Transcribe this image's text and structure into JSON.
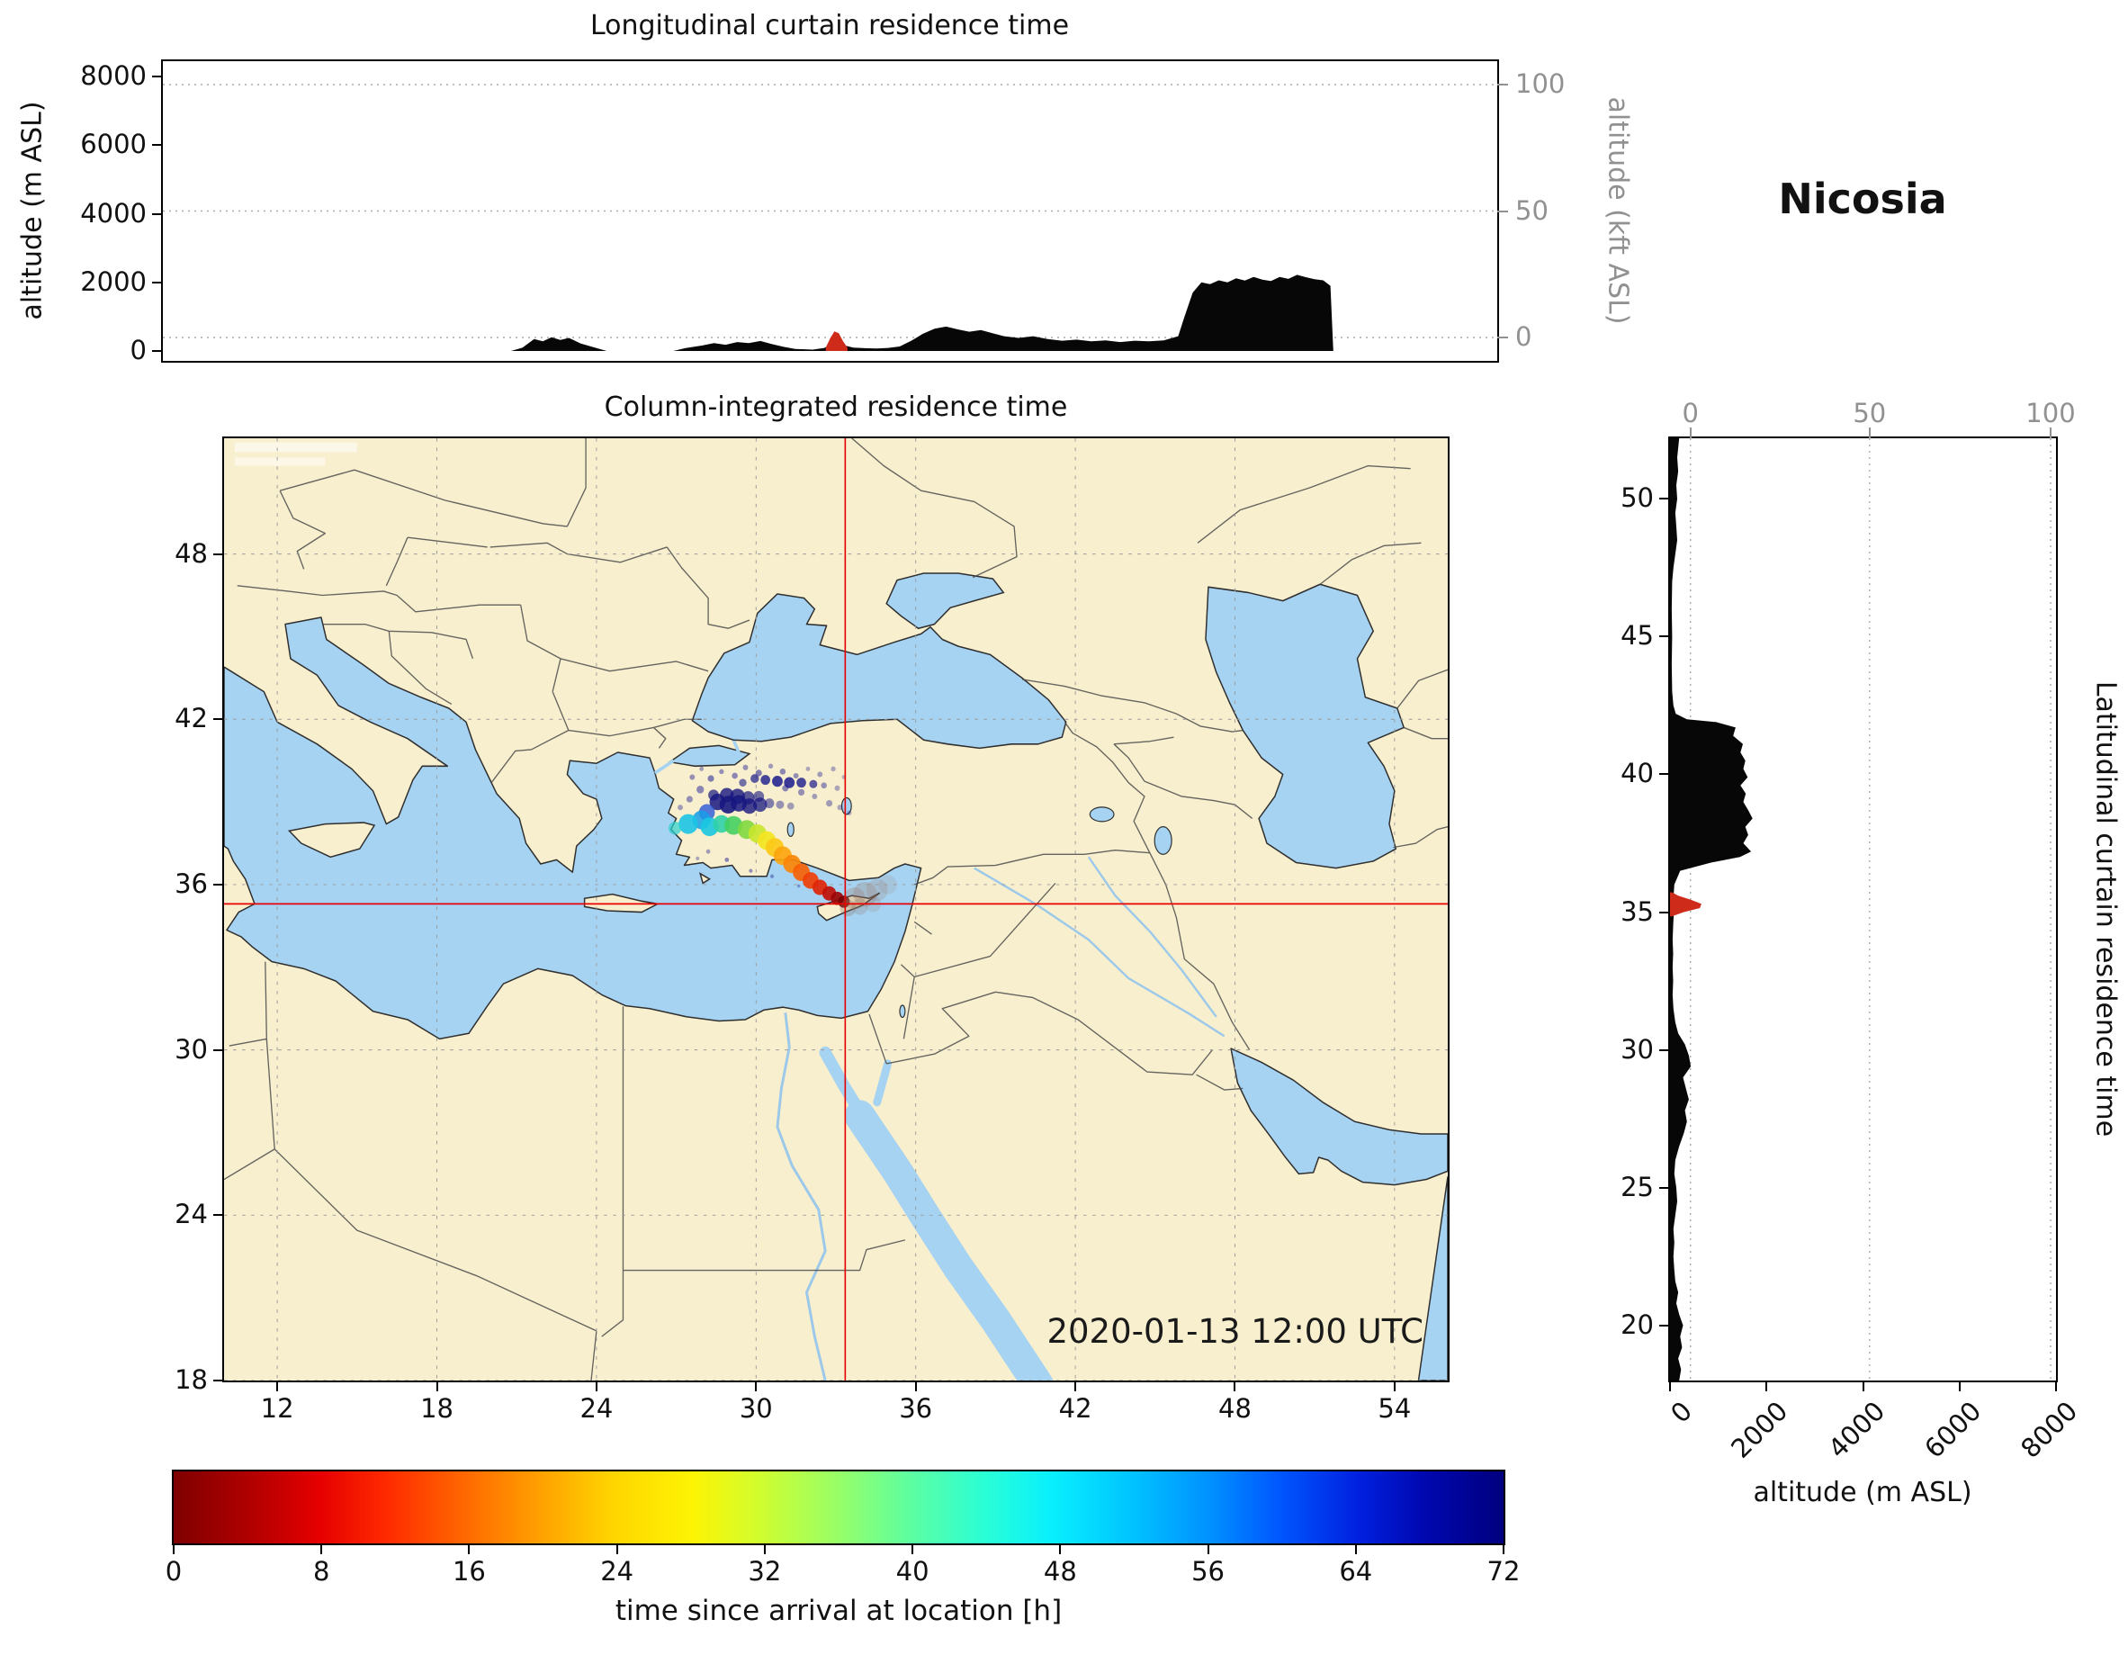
{
  "figure": {
    "station": "Nicosia",
    "datetime": "2020-01-13 12:00 UTC"
  },
  "top_panel": {
    "title": "Longitudinal curtain residence time",
    "ylabel_left": "altitude (m ASL)",
    "ylabel_right": "altitude (kft ASL)",
    "yticks_left": [
      "0",
      "2000",
      "4000",
      "6000",
      "8000"
    ],
    "yticks_right": [
      "0",
      "50",
      "100"
    ]
  },
  "map_panel": {
    "title": "Column-integrated residence time",
    "xticks": [
      "12",
      "18",
      "24",
      "30",
      "36",
      "42",
      "48",
      "54"
    ],
    "yticks": [
      "18",
      "24",
      "30",
      "36",
      "42",
      "48"
    ]
  },
  "right_panel": {
    "label_right": "Latitudinal curtain residence time",
    "xlabel": "altitude (m ASL)",
    "xticks": [
      "0",
      "2000",
      "4000",
      "6000",
      "8000"
    ],
    "top_ticks": [
      "0",
      "50",
      "100"
    ],
    "yticks": [
      "20",
      "25",
      "30",
      "35",
      "40",
      "45",
      "50"
    ]
  },
  "colorbar": {
    "label": "time since arrival at location [h]",
    "ticks": [
      "0",
      "8",
      "16",
      "24",
      "32",
      "40",
      "48",
      "56",
      "64",
      "72"
    ]
  },
  "chart_data": {
    "type": "geo-trajectory-composite",
    "lon_domain": [
      10,
      56
    ],
    "lat_domain": [
      18,
      52.2
    ],
    "alt_domain": [
      0,
      8000
    ],
    "crosshair": {
      "lon": 33.35,
      "lat": 35.3
    },
    "map_grid": {
      "lons": [
        12,
        18,
        24,
        30,
        36,
        42,
        48,
        54
      ],
      "lats": [
        18,
        24,
        30,
        36,
        42,
        48
      ]
    },
    "kft_levels": [
      [
        "0",
        0.922
      ],
      [
        "50",
        0.5
      ],
      [
        "100",
        0.078
      ]
    ],
    "right_top_fracs": [
      [
        "0",
        0.053
      ],
      [
        "50",
        0.517
      ],
      [
        "100",
        0.986
      ]
    ],
    "top_terrain": [
      [
        10,
        0
      ],
      [
        22,
        0
      ],
      [
        22.4,
        100
      ],
      [
        22.8,
        350
      ],
      [
        23.1,
        280
      ],
      [
        23.4,
        400
      ],
      [
        23.7,
        320
      ],
      [
        24,
        380
      ],
      [
        24.4,
        220
      ],
      [
        24.8,
        120
      ],
      [
        25.3,
        0
      ],
      [
        27.6,
        0
      ],
      [
        28,
        80
      ],
      [
        28.6,
        160
      ],
      [
        29,
        230
      ],
      [
        29.4,
        180
      ],
      [
        29.8,
        260
      ],
      [
        30.2,
        230
      ],
      [
        30.6,
        290
      ],
      [
        31,
        200
      ],
      [
        31.4,
        120
      ],
      [
        31.8,
        60
      ],
      [
        32.4,
        40
      ],
      [
        32.8,
        90
      ],
      [
        33,
        180
      ],
      [
        33.2,
        260
      ],
      [
        33.5,
        160
      ],
      [
        33.8,
        100
      ],
      [
        34.2,
        80
      ],
      [
        34.6,
        70
      ],
      [
        35,
        90
      ],
      [
        35.4,
        130
      ],
      [
        35.8,
        300
      ],
      [
        36.2,
        500
      ],
      [
        36.6,
        650
      ],
      [
        37,
        710
      ],
      [
        37.4,
        630
      ],
      [
        37.8,
        560
      ],
      [
        38.2,
        610
      ],
      [
        38.6,
        520
      ],
      [
        39,
        430
      ],
      [
        39.5,
        380
      ],
      [
        40,
        430
      ],
      [
        40.5,
        350
      ],
      [
        41,
        300
      ],
      [
        41.5,
        330
      ],
      [
        42,
        280
      ],
      [
        42.5,
        310
      ],
      [
        43,
        260
      ],
      [
        43.5,
        300
      ],
      [
        44,
        280
      ],
      [
        44.5,
        310
      ],
      [
        45,
        430
      ],
      [
        45.2,
        950
      ],
      [
        45.5,
        1700
      ],
      [
        45.8,
        2000
      ],
      [
        46.1,
        1950
      ],
      [
        46.4,
        2060
      ],
      [
        46.7,
        2000
      ],
      [
        47,
        2120
      ],
      [
        47.3,
        2050
      ],
      [
        47.6,
        2160
      ],
      [
        47.9,
        2080
      ],
      [
        48.2,
        2040
      ],
      [
        48.5,
        2160
      ],
      [
        48.8,
        2100
      ],
      [
        49.1,
        2220
      ],
      [
        49.4,
        2150
      ],
      [
        49.7,
        2090
      ],
      [
        50,
        2060
      ],
      [
        50.25,
        1900
      ],
      [
        50.35,
        0
      ],
      [
        56,
        0
      ]
    ],
    "top_marker": [
      [
        32.85,
        100
      ],
      [
        33,
        360
      ],
      [
        33.15,
        570
      ],
      [
        33.3,
        520
      ],
      [
        33.45,
        280
      ],
      [
        33.6,
        100
      ]
    ],
    "right_terrain": [
      [
        18,
        190
      ],
      [
        18.4,
        230
      ],
      [
        18.8,
        170
      ],
      [
        19.2,
        250
      ],
      [
        19.6,
        210
      ],
      [
        20,
        270
      ],
      [
        20.4,
        190
      ],
      [
        20.8,
        130
      ],
      [
        21.2,
        170
      ],
      [
        21.6,
        110
      ],
      [
        22,
        90
      ],
      [
        22.5,
        70
      ],
      [
        23,
        90
      ],
      [
        23.5,
        70
      ],
      [
        24,
        110
      ],
      [
        24.5,
        150
      ],
      [
        25,
        130
      ],
      [
        25.5,
        90
      ],
      [
        26,
        110
      ],
      [
        26.5,
        190
      ],
      [
        27,
        290
      ],
      [
        27.4,
        350
      ],
      [
        27.8,
        310
      ],
      [
        28.2,
        390
      ],
      [
        28.6,
        330
      ],
      [
        29,
        270
      ],
      [
        29.4,
        430
      ],
      [
        29.8,
        390
      ],
      [
        30.2,
        310
      ],
      [
        30.6,
        170
      ],
      [
        31,
        110
      ],
      [
        31.5,
        70
      ],
      [
        32,
        55
      ],
      [
        32.5,
        65
      ],
      [
        33,
        55
      ],
      [
        33.5,
        65
      ],
      [
        34,
        55
      ],
      [
        34.5,
        65
      ],
      [
        35,
        80
      ],
      [
        35.5,
        70
      ],
      [
        36,
        90
      ],
      [
        36.5,
        210
      ],
      [
        36.8,
        850
      ],
      [
        37,
        1450
      ],
      [
        37.2,
        1680
      ],
      [
        37.5,
        1520
      ],
      [
        37.8,
        1620
      ],
      [
        38.1,
        1560
      ],
      [
        38.4,
        1710
      ],
      [
        38.7,
        1620
      ],
      [
        39,
        1520
      ],
      [
        39.3,
        1570
      ],
      [
        39.6,
        1460
      ],
      [
        39.9,
        1610
      ],
      [
        40.2,
        1520
      ],
      [
        40.5,
        1560
      ],
      [
        40.8,
        1460
      ],
      [
        41.1,
        1510
      ],
      [
        41.4,
        1310
      ],
      [
        41.7,
        1360
      ],
      [
        41.9,
        950
      ],
      [
        42,
        350
      ],
      [
        42.2,
        120
      ],
      [
        42.5,
        70
      ],
      [
        43,
        45
      ],
      [
        44,
        35
      ],
      [
        45,
        45
      ],
      [
        46,
        35
      ],
      [
        47,
        45
      ],
      [
        47.5,
        70
      ],
      [
        48,
        110
      ],
      [
        48.5,
        150
      ],
      [
        49,
        130
      ],
      [
        49.5,
        110
      ],
      [
        50,
        150
      ],
      [
        50.5,
        130
      ],
      [
        51,
        170
      ],
      [
        51.5,
        150
      ],
      [
        52.2,
        190
      ]
    ],
    "right_marker": [
      [
        34.85,
        40
      ],
      [
        35,
        280
      ],
      [
        35.15,
        620
      ],
      [
        35.3,
        650
      ],
      [
        35.45,
        430
      ],
      [
        35.6,
        170
      ],
      [
        35.72,
        40
      ]
    ],
    "colorbar_stops": [
      [
        0,
        "#7f0000"
      ],
      [
        0.06,
        "#b30000"
      ],
      [
        0.11,
        "#e60000"
      ],
      [
        0.16,
        "#ff2a00"
      ],
      [
        0.22,
        "#ff6900"
      ],
      [
        0.28,
        "#ffa500"
      ],
      [
        0.33,
        "#ffd500"
      ],
      [
        0.39,
        "#fdf403"
      ],
      [
        0.44,
        "#d1fd2e"
      ],
      [
        0.5,
        "#97fe67"
      ],
      [
        0.55,
        "#61fe9d"
      ],
      [
        0.61,
        "#2afed6"
      ],
      [
        0.66,
        "#08f0fd"
      ],
      [
        0.72,
        "#00c4ff"
      ],
      [
        0.78,
        "#0090ff"
      ],
      [
        0.83,
        "#0058ff"
      ],
      [
        0.89,
        "#0021e0"
      ],
      [
        0.94,
        "#0008b0"
      ],
      [
        1,
        "#00007f"
      ]
    ],
    "plume": [
      [
        27.6,
        39.9,
        0.1,
        "#1d1d93",
        0.45
      ],
      [
        27.95,
        40.2,
        0.08,
        "#1d1d93",
        0.4
      ],
      [
        28.3,
        39.85,
        0.12,
        "#1d1d93",
        0.55
      ],
      [
        28.7,
        40.1,
        0.09,
        "#1d1d93",
        0.45
      ],
      [
        29.2,
        39.95,
        0.11,
        "#1d1d93",
        0.5
      ],
      [
        29.6,
        40.25,
        0.1,
        "#1d1d93",
        0.45
      ],
      [
        30.1,
        40.05,
        0.12,
        "#1d1d93",
        0.55
      ],
      [
        30.55,
        40.3,
        0.09,
        "#1d1d93",
        0.4
      ],
      [
        31.0,
        40.1,
        0.11,
        "#1d1d93",
        0.5
      ],
      [
        31.5,
        39.95,
        0.1,
        "#1d1d93",
        0.45
      ],
      [
        31.95,
        40.2,
        0.08,
        "#1d1d93",
        0.35
      ],
      [
        32.4,
        40.0,
        0.1,
        "#1d1d93",
        0.4
      ],
      [
        32.9,
        40.2,
        0.09,
        "#1d1d93",
        0.35
      ],
      [
        33.3,
        39.9,
        0.08,
        "#1d1d93",
        0.3
      ],
      [
        33.05,
        39.5,
        0.1,
        "#1d1d93",
        0.35
      ],
      [
        32.55,
        39.6,
        0.11,
        "#1d1d93",
        0.45
      ],
      [
        31.7,
        39.35,
        0.12,
        "#1d1d93",
        0.45
      ],
      [
        32.2,
        39.2,
        0.1,
        "#1d1d93",
        0.4
      ],
      [
        32.75,
        38.95,
        0.12,
        "#1d1d93",
        0.4
      ],
      [
        33.15,
        38.8,
        0.1,
        "#1d1d93",
        0.35
      ],
      [
        33.5,
        38.6,
        0.09,
        "#1d1d93",
        0.3
      ],
      [
        31.1,
        39.5,
        0.12,
        "#1d1d93",
        0.5
      ],
      [
        27.9,
        39.45,
        0.14,
        "#1d1d93",
        0.5
      ],
      [
        27.5,
        39.1,
        0.12,
        "#1d1d93",
        0.45
      ],
      [
        27.15,
        38.8,
        0.1,
        "#1d1d93",
        0.4
      ],
      [
        29.95,
        39.85,
        0.16,
        "#1a1a8c",
        0.7
      ],
      [
        30.35,
        39.8,
        0.18,
        "#1a1a8c",
        0.8
      ],
      [
        30.8,
        39.75,
        0.2,
        "#1a1a8c",
        0.85
      ],
      [
        31.25,
        39.7,
        0.2,
        "#1a1a8c",
        0.85
      ],
      [
        31.7,
        39.7,
        0.18,
        "#1a1a8c",
        0.8
      ],
      [
        32.15,
        39.65,
        0.15,
        "#1a1a8c",
        0.7
      ],
      [
        29.5,
        39.7,
        0.14,
        "#1a1a8c",
        0.6
      ],
      [
        28.55,
        39.0,
        0.3,
        "#171780",
        0.85
      ],
      [
        28.95,
        38.9,
        0.32,
        "#171780",
        0.9
      ],
      [
        29.35,
        38.95,
        0.3,
        "#171780",
        0.85
      ],
      [
        29.75,
        38.85,
        0.28,
        "#171780",
        0.8
      ],
      [
        30.15,
        38.9,
        0.26,
        "#171780",
        0.75
      ],
      [
        28.9,
        39.25,
        0.26,
        "#171780",
        0.8
      ],
      [
        29.3,
        39.2,
        0.28,
        "#171780",
        0.8
      ],
      [
        29.7,
        39.15,
        0.24,
        "#171780",
        0.7
      ],
      [
        30.1,
        39.2,
        0.2,
        "#171780",
        0.6
      ],
      [
        28.4,
        39.25,
        0.2,
        "#171780",
        0.7
      ],
      [
        30.5,
        38.95,
        0.18,
        "#20208c",
        0.55
      ],
      [
        30.9,
        38.9,
        0.15,
        "#20208c",
        0.45
      ],
      [
        31.3,
        38.85,
        0.13,
        "#20208c",
        0.4
      ],
      [
        28.9,
        36.9,
        0.08,
        "#1d1d93",
        0.5
      ],
      [
        29.8,
        36.5,
        0.07,
        "#1d1d93",
        0.45
      ],
      [
        30.6,
        36.3,
        0.07,
        "#1d1d93",
        0.4
      ],
      [
        31.6,
        35.95,
        0.06,
        "#1d1d93",
        0.35
      ],
      [
        28.2,
        37.2,
        0.08,
        "#1d1d93",
        0.4
      ],
      [
        27.8,
        36.95,
        0.07,
        "#1d1d93",
        0.35
      ],
      [
        28.15,
        38.62,
        0.3,
        "#2b57d8",
        0.8
      ],
      [
        27.95,
        38.35,
        0.34,
        "#189fe8",
        0.85
      ],
      [
        27.45,
        38.2,
        0.36,
        "#19c3e6",
        0.9
      ],
      [
        28.25,
        38.1,
        0.34,
        "#19c8e0",
        0.9
      ],
      [
        26.95,
        38.05,
        0.24,
        "#2ad2d2",
        0.7
      ],
      [
        28.7,
        38.2,
        0.32,
        "#2fd0a8",
        0.9
      ],
      [
        29.15,
        38.15,
        0.34,
        "#45cf62",
        0.9
      ],
      [
        29.65,
        38.0,
        0.34,
        "#7ed83f",
        0.9
      ],
      [
        30.05,
        37.85,
        0.34,
        "#c8e62e",
        0.9
      ],
      [
        30.4,
        37.6,
        0.34,
        "#f2e51f",
        0.92
      ],
      [
        30.7,
        37.35,
        0.34,
        "#fbc918",
        0.92
      ],
      [
        31.0,
        37.05,
        0.34,
        "#fca60f",
        0.92
      ],
      [
        31.35,
        36.75,
        0.33,
        "#fb8508",
        0.92
      ],
      [
        31.7,
        36.45,
        0.32,
        "#f66206",
        0.92
      ],
      [
        32.05,
        36.15,
        0.3,
        "#ef4005",
        0.92
      ],
      [
        32.4,
        35.9,
        0.28,
        "#e02508",
        0.92
      ],
      [
        32.75,
        35.68,
        0.26,
        "#c01008",
        0.92
      ],
      [
        33.05,
        35.5,
        0.24,
        "#9c0606",
        0.92
      ],
      [
        33.3,
        35.38,
        0.22,
        "#7a0403",
        0.92
      ],
      [
        33.7,
        35.5,
        0.4,
        "#9a7a6a",
        0.3
      ],
      [
        34.1,
        35.65,
        0.45,
        "#9a7a6a",
        0.28
      ],
      [
        34.55,
        35.8,
        0.4,
        "#9a7a6a",
        0.22
      ],
      [
        34.95,
        36.0,
        0.35,
        "#9a7a6a",
        0.16
      ],
      [
        33.9,
        35.2,
        0.3,
        "#8a7468",
        0.25
      ],
      [
        34.4,
        35.3,
        0.3,
        "#8a7468",
        0.18
      ],
      [
        33.45,
        35.15,
        0.3,
        "#7d6f66",
        0.3
      ]
    ]
  }
}
